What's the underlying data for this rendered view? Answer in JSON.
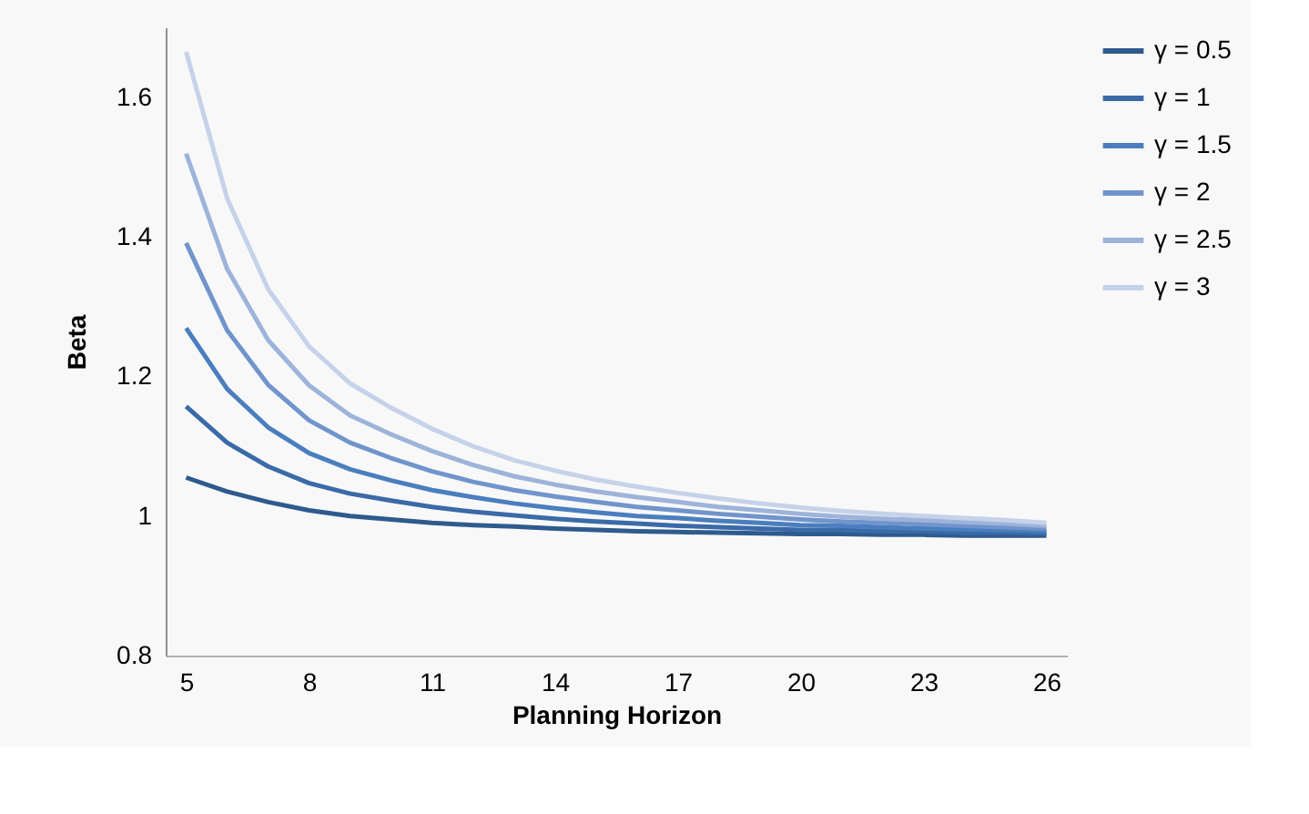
{
  "chart_data": {
    "type": "line",
    "xlabel": "Planning Horizon",
    "ylabel": "Beta",
    "x": [
      5,
      6,
      7,
      8,
      9,
      10,
      11,
      12,
      13,
      14,
      15,
      16,
      17,
      18,
      19,
      20,
      21,
      22,
      23,
      24,
      25,
      26
    ],
    "xlim": [
      4.5,
      26.5
    ],
    "xticks": [
      5,
      8,
      11,
      14,
      17,
      20,
      23,
      26
    ],
    "ylim": [
      0.8,
      1.7
    ],
    "yticks": [
      0.8,
      1,
      1.2,
      1.4,
      1.6
    ],
    "grid": false,
    "legend": "right",
    "marker": "none",
    "line_style": "solid",
    "series": [
      {
        "name": "γ = 0.5",
        "color": "#2e5a8e",
        "values": [
          1.055,
          1.035,
          1.02,
          1.008,
          1.0,
          0.995,
          0.99,
          0.987,
          0.985,
          0.982,
          0.98,
          0.978,
          0.977,
          0.976,
          0.975,
          0.974,
          0.974,
          0.973,
          0.973,
          0.972,
          0.972,
          0.972
        ]
      },
      {
        "name": "γ = 1",
        "color": "#3a6aa8",
        "values": [
          1.157,
          1.105,
          1.071,
          1.047,
          1.032,
          1.022,
          1.013,
          1.006,
          1.001,
          0.996,
          0.992,
          0.989,
          0.986,
          0.984,
          0.982,
          0.98,
          0.98,
          0.978,
          0.978,
          0.976,
          0.976,
          0.975
        ]
      },
      {
        "name": "γ = 1.5",
        "color": "#4a7ebe",
        "values": [
          1.269,
          1.182,
          1.127,
          1.09,
          1.067,
          1.051,
          1.037,
          1.027,
          1.018,
          1.011,
          1.005,
          1.0,
          0.997,
          0.993,
          0.99,
          0.987,
          0.986,
          0.984,
          0.982,
          0.981,
          0.98,
          0.978
        ]
      },
      {
        "name": "γ = 2",
        "color": "#7094cc",
        "values": [
          1.391,
          1.266,
          1.188,
          1.137,
          1.105,
          1.083,
          1.064,
          1.049,
          1.037,
          1.028,
          1.02,
          1.013,
          1.008,
          1.003,
          0.999,
          0.995,
          0.992,
          0.99,
          0.988,
          0.986,
          0.984,
          0.982
        ]
      },
      {
        "name": "γ = 2.5",
        "color": "#9db3da",
        "values": [
          1.519,
          1.354,
          1.252,
          1.187,
          1.144,
          1.117,
          1.093,
          1.073,
          1.057,
          1.045,
          1.035,
          1.027,
          1.02,
          1.013,
          1.008,
          1.003,
          0.999,
          0.996,
          0.994,
          0.991,
          0.989,
          0.986
        ]
      },
      {
        "name": "γ = 3",
        "color": "#c5d2e9",
        "values": [
          1.665,
          1.455,
          1.325,
          1.243,
          1.19,
          1.155,
          1.125,
          1.1,
          1.08,
          1.065,
          1.052,
          1.042,
          1.033,
          1.025,
          1.018,
          1.012,
          1.007,
          1.003,
          1.0,
          0.997,
          0.994,
          0.99
        ]
      }
    ]
  }
}
